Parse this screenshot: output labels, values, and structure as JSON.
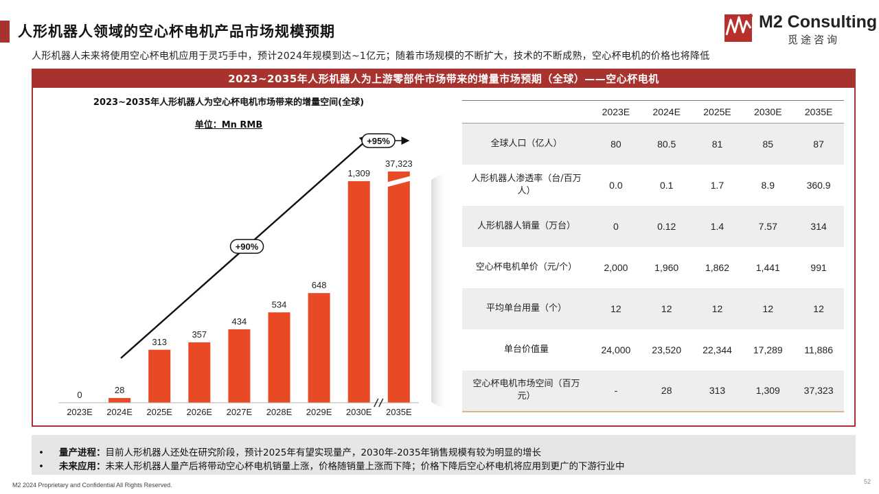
{
  "header": {
    "title": "人形机器人领域的空心杯电机产品市场规模预期",
    "subtitle": "人形机器人未来将使用空心杯电机应用于灵巧手中，预计2024年规模到达~1亿元；随着市场规模的不断扩大，技术的不断成熟，空心杯电机的价格也将降低"
  },
  "logo": {
    "name": "M2 Consulting",
    "sub": "觅途咨询"
  },
  "panel": {
    "title": "2023~2035年人形机器人为上游零部件市场带来的增量市场预期（全球）——空心杯电机"
  },
  "chart": {
    "title": "2023~2035年人形机器人为空心杯电机市场带来的增量空间(全球)",
    "unit": "单位：Mn RMB"
  },
  "chart_data": {
    "type": "bar",
    "title": "2023~2035年人形机器人为空心杯电机市场带来的增量空间(全球)",
    "subtitle": "单位：Mn RMB",
    "categories": [
      "2023E",
      "2024E",
      "2025E",
      "2026E",
      "2027E",
      "2028E",
      "2029E",
      "2030E",
      "2035E"
    ],
    "values": [
      0,
      28,
      313,
      357,
      434,
      534,
      648,
      1309,
      37323
    ],
    "value_labels": [
      "0",
      "28",
      "313",
      "357",
      "434",
      "534",
      "648",
      "1,309",
      "37,323"
    ],
    "axis_break_between": [
      "2030E",
      "2035E"
    ],
    "annotations": [
      {
        "text": "+90%",
        "from": "2023E",
        "to": "2030E"
      },
      {
        "text": "+95%",
        "from": "2030E",
        "to": "2035E"
      }
    ],
    "grid": false,
    "legend": "none",
    "bar_color": "#e84a25"
  },
  "table": {
    "columns": [
      "2023E",
      "2024E",
      "2025E",
      "2030E",
      "2035E"
    ],
    "rows": [
      {
        "label": "全球人口（亿人）",
        "values": [
          "80",
          "80.5",
          "81",
          "85",
          "87"
        ]
      },
      {
        "label": "人形机器人渗透率（台/百万人）",
        "values": [
          "0.0",
          "0.1",
          "1.7",
          "8.9",
          "360.9"
        ]
      },
      {
        "label": "人形机器人销量（万台）",
        "values": [
          "0",
          "0.12",
          "1.4",
          "7.57",
          "314"
        ]
      },
      {
        "label": "空心杯电机单价（元/个）",
        "values": [
          "2,000",
          "1,960",
          "1,862",
          "1,441",
          "991"
        ]
      },
      {
        "label": "平均单台用量（个）",
        "values": [
          "12",
          "12",
          "12",
          "12",
          "12"
        ]
      },
      {
        "label": "单台价值量",
        "values": [
          "24,000",
          "23,520",
          "22,344",
          "17,289",
          "11,886"
        ]
      },
      {
        "label": "空心杯电机市场空间（百万元）",
        "values": [
          "-",
          "28",
          "313",
          "1,309",
          "37,323"
        ]
      }
    ]
  },
  "notes": [
    {
      "bullet": "•",
      "head": "量产进程：",
      "text": "目前人形机器人还处在研究阶段，预计2025年有望实现量产，2030年-2035年销售规模有较为明显的增长"
    },
    {
      "bullet": "•",
      "head": "未来应用：",
      "text": "未来人形机器人量产后将带动空心杯电机销量上涨，价格随销量上涨而下降；价格下降后空心杯电机将应用到更广的下游行业中"
    }
  ],
  "footer": {
    "text": "M2  2024 Proprietary and Confidential All Rights Reserved.",
    "page": "52"
  },
  "colors": {
    "accent": "#a8322d",
    "bar": "#e84a25"
  }
}
